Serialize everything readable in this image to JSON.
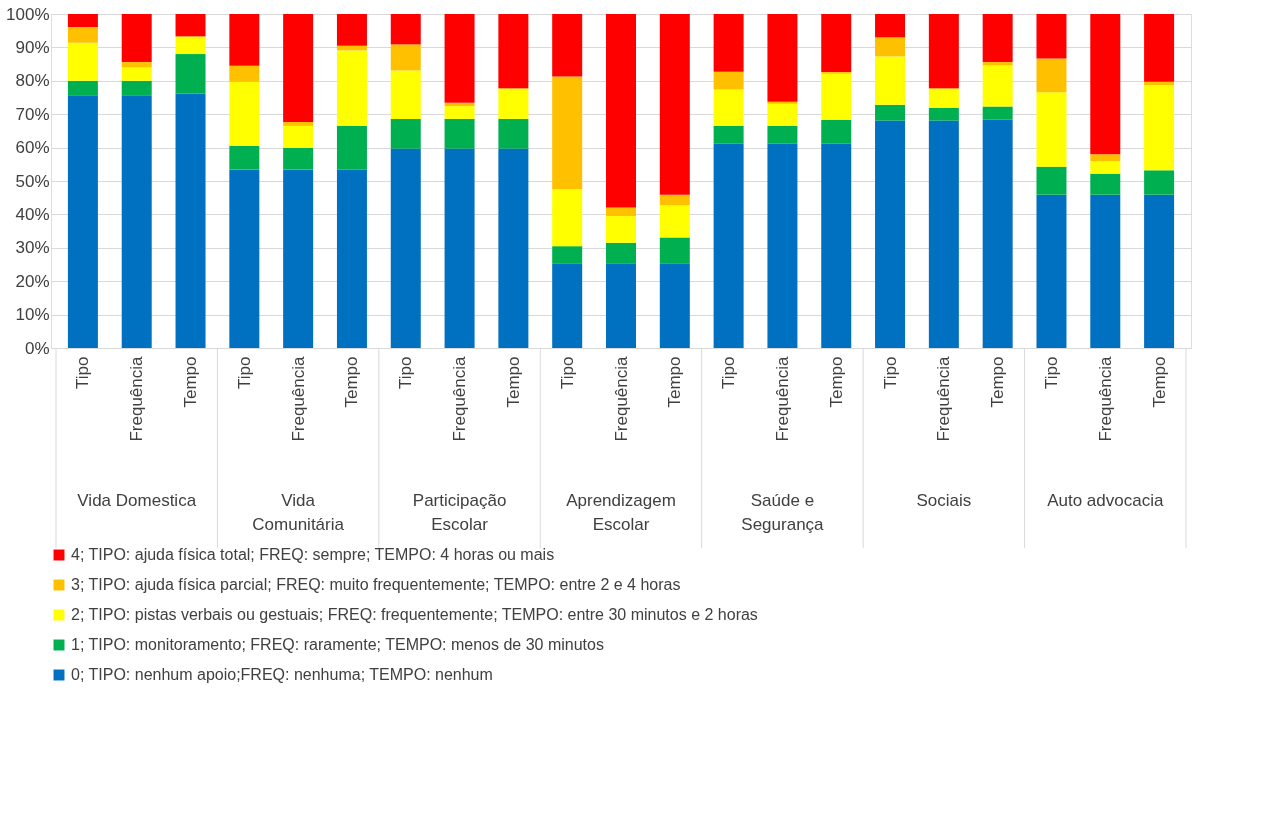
{
  "chart_data": {
    "type": "bar",
    "stacked": true,
    "legend": "bottom",
    "grid": "y",
    "categories": [
      "Tipo",
      "Frequência",
      "Tempo",
      "Tipo",
      "Frequência",
      "Tempo",
      "Tipo",
      "Frequência",
      "Tempo",
      "Tipo",
      "Frequência",
      "Tempo",
      "Tipo",
      "Frequência",
      "Tempo",
      "Tipo",
      "Frequência",
      "Tempo",
      "Tipo",
      "Frequência",
      "Tempo"
    ],
    "annotations": [
      "Vida Domestica",
      "Vida Comunitária",
      "Participação Escolar",
      "Aprendizagem Escolar",
      "Saúde e Segurança",
      "Sociais",
      "Auto advocacia"
    ],
    "ylim": [
      0,
      100
    ],
    "yticks": [
      {
        "value": 0,
        "label": "0%"
      },
      {
        "value": 10,
        "label": "10%"
      },
      {
        "value": 20,
        "label": "20%"
      },
      {
        "value": 30,
        "label": "30%"
      },
      {
        "value": 40,
        "label": "40%"
      },
      {
        "value": 50,
        "label": "50%"
      },
      {
        "value": 60,
        "label": "60%"
      },
      {
        "value": 70,
        "label": "70%"
      },
      {
        "value": 80,
        "label": "80%"
      },
      {
        "value": 90,
        "label": "90%"
      },
      {
        "value": 100,
        "label": "100%"
      }
    ],
    "series": [
      {
        "name": "0; TIPO: nenhum apoio;FREQ: nenhuma; TEMPO: nenhum",
        "color": "#0070c0",
        "values": [
          75.7,
          75.7,
          76.2,
          53.4,
          53.4,
          53.4,
          59.7,
          59.7,
          59.7,
          25.2,
          25.2,
          25.2,
          61.2,
          61.2,
          61.2,
          68.1,
          68.1,
          68.4,
          45.9,
          45.9,
          45.9
        ]
      },
      {
        "name": "1; TIPO: monitoramento; FREQ: raramente; TEMPO: menos de 30 minutos",
        "color": "#00b050",
        "values": [
          4.3,
          4.3,
          11.8,
          7.1,
          6.5,
          13.1,
          8.9,
          8.9,
          8.9,
          5.3,
          6.3,
          7.9,
          5.3,
          5.3,
          7.1,
          4.7,
          3.8,
          3.9,
          8.4,
          6.3,
          7.3
        ]
      },
      {
        "name": "2; TIPO: pistas verbais ou gestuais; FREQ: frequentemente; TEMPO: entre 30 minutos e 2 horas",
        "color": "#ffff00",
        "values": [
          11.4,
          4.0,
          5.3,
          19.2,
          6.6,
          22.6,
          14.5,
          3.8,
          9.0,
          17.0,
          8.0,
          9.6,
          10.9,
          6.6,
          13.8,
          14.5,
          5.7,
          12.3,
          22.3,
          3.7,
          25.5
        ]
      },
      {
        "name": "3; TIPO: ajuda física parcial; FREQ: muito frequentemente; TEMPO: entre 2 e 4 horas",
        "color": "#ffc000",
        "values": [
          4.7,
          1.6,
          0,
          4.8,
          1.2,
          1.4,
          7.8,
          1.0,
          0.2,
          33.8,
          2.6,
          3.2,
          5.3,
          0.6,
          0.5,
          5.7,
          0.2,
          1.0,
          10.1,
          2.1,
          1.0
        ]
      },
      {
        "name": "4; TIPO: ajuda física total; FREQ: sempre; TEMPO: 4 horas ou mais",
        "color": "#ff0000",
        "values": [
          3.9,
          14.4,
          6.7,
          15.5,
          32.3,
          9.5,
          9.1,
          26.6,
          22.2,
          18.7,
          57.9,
          54.1,
          17.3,
          26.3,
          17.4,
          7.0,
          22.2,
          14.4,
          13.3,
          42.0,
          20.3
        ]
      }
    ]
  }
}
